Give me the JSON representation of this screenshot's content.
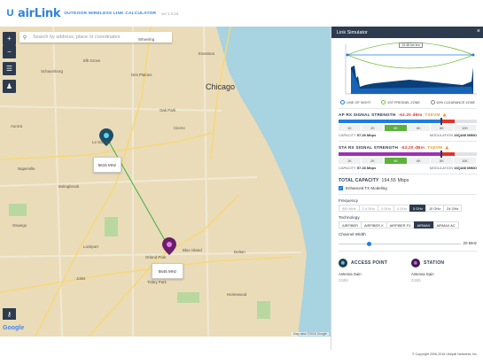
{
  "header": {
    "brand": "airLink",
    "subtitle": "OUTDOOR WIRELESS LINK CALCULATOR",
    "version": "ver 1.0.18"
  },
  "search": {
    "placeholder": "Search by address, place or coordinates"
  },
  "map": {
    "city": "Chicago",
    "popups": {
      "ap": "5615 MHz",
      "sta": "5645 MHz"
    },
    "labels": [
      "Elk Grove",
      "Wheeling",
      "Evanston",
      "Schaumburg",
      "Des Plaines",
      "Oak Park",
      "Cicero",
      "Le Grange",
      "Bolingbrook",
      "Naperville",
      "Oswego",
      "Joliet",
      "Homewood",
      "Blue Island",
      "Orland Park",
      "Aurora",
      "Lockport",
      "Tinley Park",
      "Dolton"
    ],
    "attribution": "Map data ©2016 Google",
    "google": "Google"
  },
  "simulator": {
    "title": "Link Simulator",
    "tooltip": "19.46 km km",
    "legend": [
      "LINE OF SIGHT",
      "1ST FRESNEL ZONE",
      "60% CLEARANCE ZONE"
    ],
    "ap": {
      "title": "AP RX SIGNAL STRENGTH",
      "value": "-63.20 dBm",
      "txevm": "TXEVM",
      "capacity_label": "CAPACITY",
      "capacity": "97.28 Mbps",
      "modulation_label": "MODULATION",
      "modulation": "16QAM MIMO"
    },
    "sta": {
      "title": "STA RX SIGNAL STRENGTH",
      "value": "-63.20 dBm",
      "txevm": "TXEVM",
      "capacity_label": "CAPACITY",
      "capacity": "97.28 Mbps",
      "modulation_label": "MODULATION",
      "modulation": "16QAM MIMO"
    },
    "scale": [
      "1K",
      "2K",
      "4K",
      "6K",
      "8K",
      "10K"
    ],
    "total_label": "TOTAL CAPACITY",
    "total": "194.55 Mbps",
    "enhanced": "Enhanced TX Modeling",
    "frequency_label": "Frequency",
    "frequency": [
      "900 MHz",
      "2.4 GHz",
      "3 GHz",
      "4 GHz",
      "5 GHz",
      "10 GHz",
      "24 GHz"
    ],
    "technology_label": "Technology",
    "technology": [
      "AIRFIBER",
      "AIRFIBER X",
      "AIRFIBER FX",
      "AIRMAX",
      "AIRMAX AC"
    ],
    "channel_label": "Channel Width",
    "channel": "20 MHz",
    "access_point": "ACCESS POINT",
    "station": "STATION",
    "antenna_gain": "Antenna Gain",
    "gain_value": "23dBi",
    "footer": "© Copyright 2006-2016 Ubiquiti Networks, Inc."
  },
  "colors": {
    "accent": "#1f7de0",
    "panel_dark": "#2d3b4f",
    "good": "#5db13d",
    "bad": "#e6322b"
  }
}
